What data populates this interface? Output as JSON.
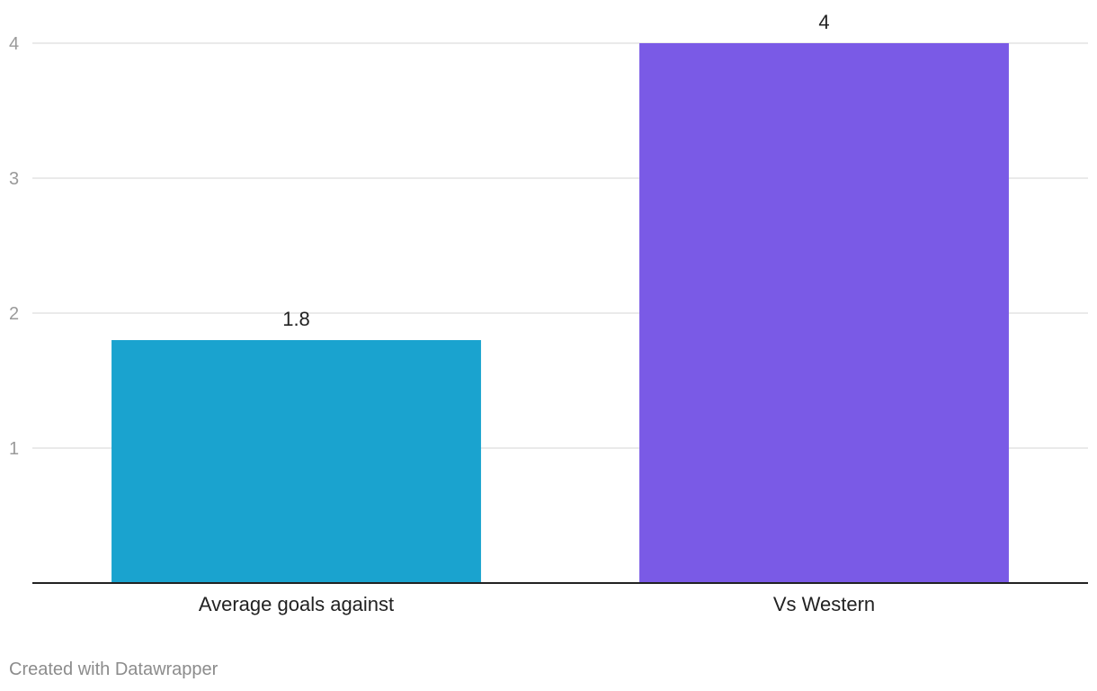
{
  "chart_data": {
    "type": "bar",
    "title": "",
    "xlabel": "",
    "ylabel": "",
    "categories": [
      "Average goals against",
      "Vs Western"
    ],
    "values": [
      1.8,
      4
    ],
    "value_labels": [
      "1.8",
      "4"
    ],
    "colors": [
      "#1aa3cf",
      "#7a5ae6"
    ],
    "ylim": [
      0,
      4
    ],
    "yticks": [
      1,
      2,
      3,
      4
    ],
    "ytick_labels": [
      "1",
      "2",
      "3",
      "4"
    ],
    "grid": true
  },
  "footer": {
    "credit": "Created with Datawrapper"
  }
}
